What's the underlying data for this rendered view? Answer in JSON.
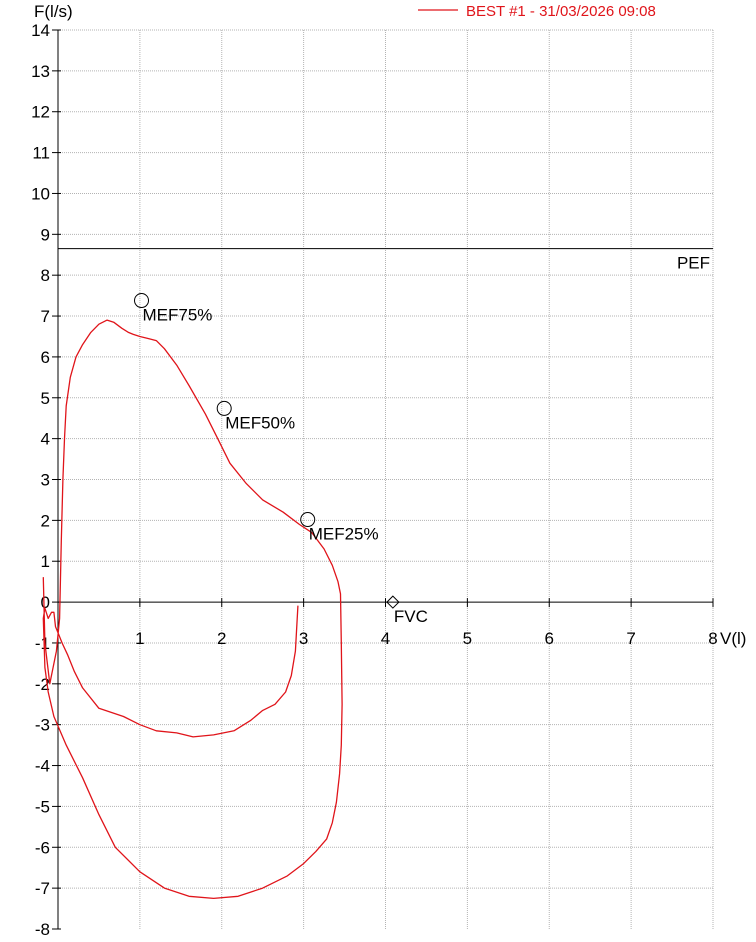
{
  "chart_data": {
    "type": "line",
    "title": "",
    "xlabel": "V(l)",
    "ylabel": "F(l/s)",
    "xlim": [
      0,
      8
    ],
    "ylim": [
      -8,
      14
    ],
    "xticks": [
      1,
      2,
      3,
      4,
      5,
      6,
      7,
      8
    ],
    "yticks": [
      14,
      13,
      12,
      11,
      10,
      9,
      8,
      7,
      6,
      5,
      4,
      3,
      2,
      1,
      0,
      -1,
      -2,
      -3,
      -4,
      -5,
      -6,
      -7,
      -8
    ],
    "grid": true,
    "legend": {
      "position": "top-right",
      "entries": [
        "BEST #1 - 31/03/2026  09:08"
      ]
    },
    "colors": {
      "curve": "#e0141a",
      "legend_text": "#e0141a",
      "axis": "#000000",
      "grid": "#b3b3b3"
    },
    "reference_lines": [
      {
        "label": "PEF",
        "y": 8.65
      }
    ],
    "markers": [
      {
        "label": "MEF75%",
        "x": 1.02,
        "y": 7.38,
        "symbol": "circle"
      },
      {
        "label": "MEF50%",
        "x": 2.03,
        "y": 4.74,
        "symbol": "circle"
      },
      {
        "label": "MEF25%",
        "x": 3.05,
        "y": 2.02,
        "symbol": "circle"
      },
      {
        "label": "FVC",
        "x": 4.09,
        "y": 0.0,
        "symbol": "diamond"
      }
    ],
    "series": [
      {
        "name": "BEST #1 - 31/03/2026  09:08",
        "x": [
          -0.18,
          -0.16,
          -0.1,
          -0.02,
          0.02,
          0.04,
          0.06,
          0.08,
          0.1,
          0.15,
          0.22,
          0.3,
          0.4,
          0.5,
          0.6,
          0.68,
          0.78,
          0.86,
          0.92,
          1.0,
          1.1,
          1.2,
          1.3,
          1.45,
          1.6,
          1.8,
          1.95,
          2.1,
          2.3,
          2.5,
          2.75,
          2.95,
          3.1,
          3.25,
          3.35,
          3.42,
          3.45,
          3.46,
          3.47,
          3.46,
          3.44,
          3.4,
          3.35,
          3.28,
          3.15,
          3.0,
          2.8,
          2.5,
          2.2,
          1.9,
          1.6,
          1.3,
          1.0,
          0.7,
          0.5,
          0.3,
          0.1,
          -0.05,
          -0.12,
          -0.16,
          -0.18,
          -0.16,
          -0.12,
          -0.08,
          -0.05,
          -0.03,
          0.0,
          0.05,
          0.12,
          0.2,
          0.3,
          0.5,
          0.8,
          1.0,
          1.2,
          1.45,
          1.65,
          1.9,
          2.15,
          2.35,
          2.5,
          2.65,
          2.78,
          2.85,
          2.9,
          2.93
        ],
        "y": [
          0.6,
          -1.0,
          -2.0,
          -1.2,
          -0.4,
          1.5,
          3.0,
          4.0,
          4.8,
          5.5,
          6.0,
          6.3,
          6.6,
          6.8,
          6.9,
          6.85,
          6.7,
          6.6,
          6.55,
          6.5,
          6.45,
          6.4,
          6.2,
          5.8,
          5.3,
          4.6,
          4.0,
          3.4,
          2.9,
          2.5,
          2.2,
          1.9,
          1.7,
          1.3,
          0.9,
          0.5,
          0.2,
          -1.0,
          -2.5,
          -3.5,
          -4.2,
          -4.9,
          -5.4,
          -5.8,
          -6.1,
          -6.4,
          -6.7,
          -7.0,
          -7.2,
          -7.25,
          -7.2,
          -7.0,
          -6.6,
          -6.0,
          -5.2,
          -4.3,
          -3.5,
          -2.8,
          -2.2,
          -1.6,
          -0.4,
          -0.15,
          -0.4,
          -0.25,
          -0.25,
          -0.6,
          -0.75,
          -1.0,
          -1.3,
          -1.7,
          -2.1,
          -2.6,
          -2.8,
          -3.0,
          -3.15,
          -3.2,
          -3.3,
          -3.25,
          -3.15,
          -2.9,
          -2.65,
          -2.5,
          -2.2,
          -1.8,
          -1.2,
          -0.1
        ]
      }
    ]
  }
}
